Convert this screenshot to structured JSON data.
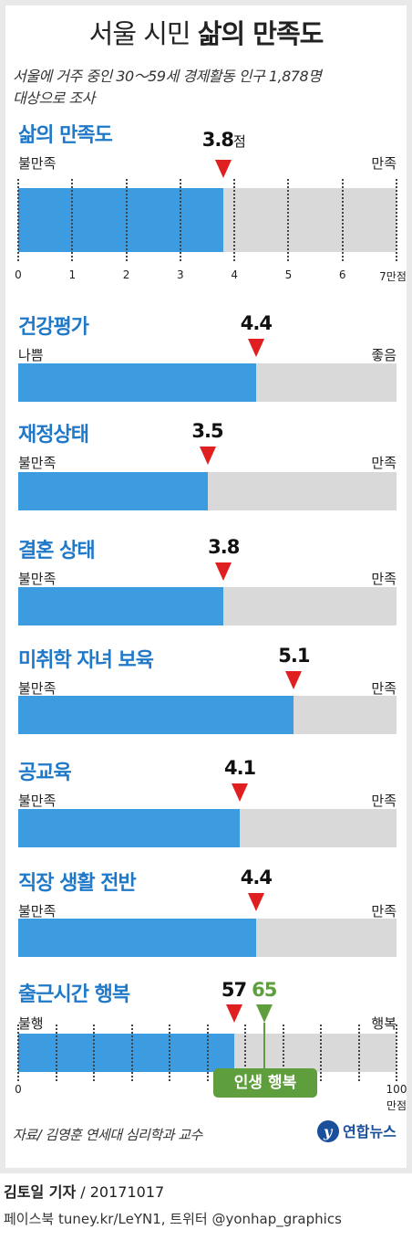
{
  "title_light": "서울 시민",
  "title_bold": "삶의 만족도",
  "subtitle_line1": "서울에 거주 중인 30～59세 경제활동 인구 1,878명",
  "subtitle_line2": "대상으로 조사",
  "score_unit": "점",
  "happiness_callout": "인생 행복",
  "source": "자료/ 김영훈 연세대 심리학과 교수",
  "logo_text": "연합뉴스",
  "footer_reporter": "김토일 기자",
  "footer_date": " / 20171017",
  "footer_social": "페이스북 tuney.kr/LeYN1, 트위터 @yonhap_graphics",
  "colors": {
    "fill": "#3d9be0",
    "empty": "#d9d9d9",
    "marker": "#e02020",
    "title": "#1f78c8",
    "happy": "#5f9e3c"
  },
  "chart_data": [
    {
      "type": "bar",
      "name": "삶의 만족도",
      "value": 3.8,
      "value_label": "3.8",
      "scale": [
        0,
        7
      ],
      "low_label": "불만족",
      "high_label": "만족",
      "ticks": [
        "0",
        "1",
        "2",
        "3",
        "4",
        "5",
        "6",
        "7만점"
      ]
    },
    {
      "type": "bar",
      "name": "건강평가",
      "value": 4.4,
      "value_label": "4.4",
      "scale": [
        0,
        7
      ],
      "low_label": "나쁨",
      "high_label": "좋음"
    },
    {
      "type": "bar",
      "name": "재정상태",
      "value": 3.5,
      "value_label": "3.5",
      "scale": [
        0,
        7
      ],
      "low_label": "불만족",
      "high_label": "만족"
    },
    {
      "type": "bar",
      "name": "결혼 상태",
      "value": 3.8,
      "value_label": "3.8",
      "scale": [
        0,
        7
      ],
      "low_label": "불만족",
      "high_label": "만족"
    },
    {
      "type": "bar",
      "name": "미취학 자녀 보육",
      "value": 5.1,
      "value_label": "5.1",
      "scale": [
        0,
        7
      ],
      "low_label": "불만족",
      "high_label": "만족"
    },
    {
      "type": "bar",
      "name": "공교육",
      "value": 4.1,
      "value_label": "4.1",
      "scale": [
        0,
        7
      ],
      "low_label": "불만족",
      "high_label": "만족"
    },
    {
      "type": "bar",
      "name": "직장 생활 전반",
      "value": 4.4,
      "value_label": "4.4",
      "scale": [
        0,
        7
      ],
      "low_label": "불만족",
      "high_label": "만족"
    },
    {
      "type": "bar",
      "name": "출근시간 행복",
      "value": 57,
      "value_label": "57",
      "happy_value": 65,
      "happy_label": "65",
      "scale": [
        0,
        100
      ],
      "low_label": "불행",
      "high_label": "행복",
      "ticks_start": "0",
      "ticks_end_line1": "100",
      "ticks_end_line2": "만점"
    }
  ]
}
